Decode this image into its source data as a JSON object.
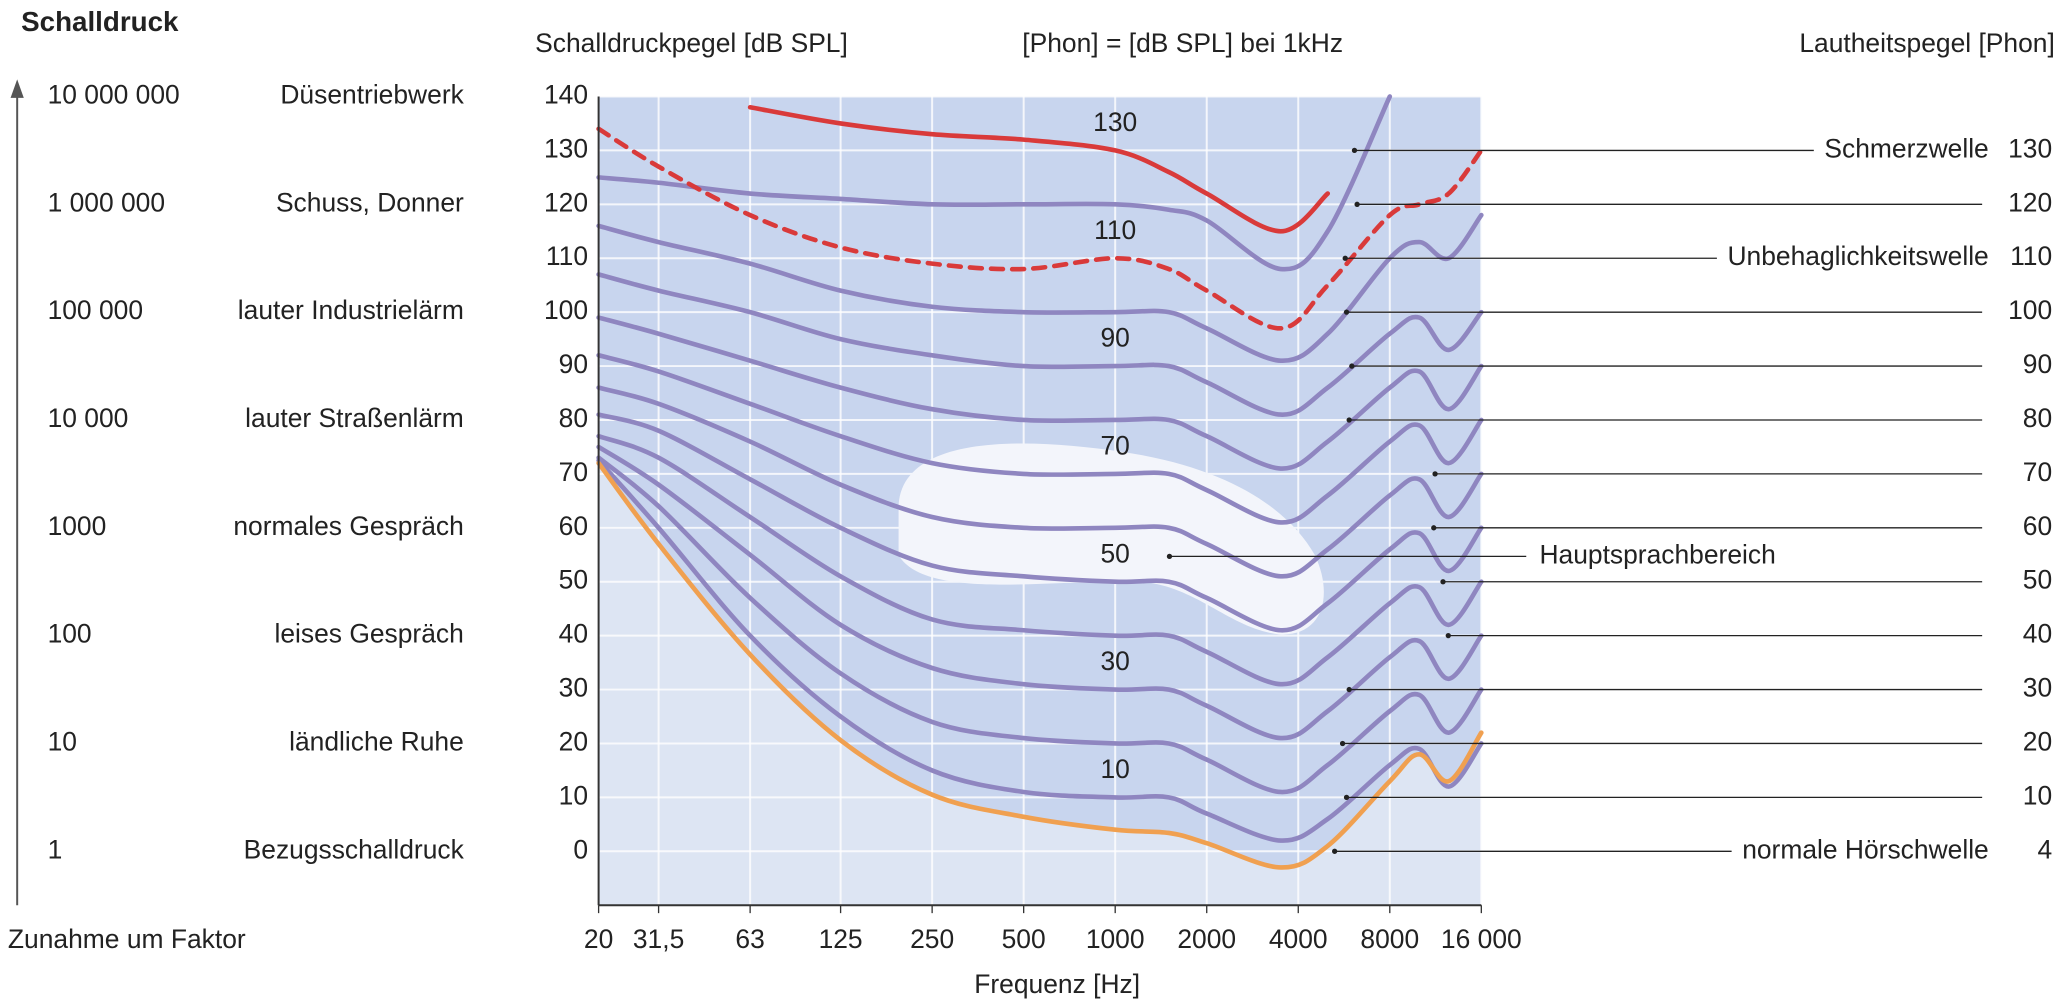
{
  "chart_data": {
    "type": "line",
    "heading": "Schalldruck",
    "y_axis_label": "Schalldruckpegel [dB SPL]",
    "subtitle": "[Phon] = [dB SPL] bei 1kHz",
    "y2_axis_label": "Lautheitspegel [Phon]",
    "x_axis_label": "Frequenz [Hz]",
    "left_footer": "Zunahme um Faktor",
    "left_scale": [
      {
        "factor": "10 000 000",
        "source": "Düsentriebwerk"
      },
      {
        "factor": "1 000 000",
        "source": "Schuss, Donner"
      },
      {
        "factor": "100 000",
        "source": "lauter Industrielärm"
      },
      {
        "factor": "10 000",
        "source": "lauter Straßenlärm"
      },
      {
        "factor": "1000",
        "source": "normales Gespräch"
      },
      {
        "factor": "100",
        "source": "leises Gespräch"
      },
      {
        "factor": "10",
        "source": "ländliche Ruhe"
      },
      {
        "factor": "1",
        "source": "Bezugsschalldruck"
      }
    ],
    "x": [
      20,
      31.5,
      63,
      125,
      250,
      500,
      1000,
      1500,
      2000,
      3500,
      5000,
      8000,
      10000,
      12500,
      16000
    ],
    "xlim": [
      20,
      16000
    ],
    "log_x": true,
    "xticks": [
      20,
      {
        "value": 31.5,
        "label": "31,5"
      },
      63,
      125,
      250,
      500,
      1000,
      2000,
      4000,
      8000,
      {
        "value": 16000,
        "label": "16 000"
      }
    ],
    "ylim": [
      -10,
      140
    ],
    "yticks": [
      0,
      10,
      20,
      30,
      40,
      50,
      60,
      70,
      80,
      90,
      100,
      110,
      120,
      130,
      140
    ],
    "grid": true,
    "series": [
      {
        "color": "#d93a3a",
        "style": "solid",
        "values": [
          null,
          null,
          138,
          135,
          133,
          132,
          130,
          126,
          122,
          115,
          122,
          null,
          null,
          null,
          null
        ]
      },
      {
        "color": "#8f86c0",
        "style": "solid",
        "values": [
          125,
          124,
          122,
          121,
          120,
          120,
          120,
          119,
          117,
          108,
          115,
          140,
          null,
          null,
          null
        ]
      },
      {
        "color": "#d93a3a",
        "style": "dashed",
        "values": [
          134,
          127,
          118,
          112,
          109,
          108,
          110,
          108,
          104,
          97,
          105,
          118,
          120,
          122,
          130
        ]
      },
      {
        "color": "#8f86c0",
        "style": "solid",
        "values": [
          116,
          113,
          109,
          104,
          101,
          100,
          100,
          100,
          97,
          91,
          96,
          110,
          113,
          110,
          118
        ]
      },
      {
        "color": "#8f86c0",
        "style": "solid",
        "values": [
          107,
          104,
          100,
          95,
          92,
          90,
          90,
          90,
          87,
          81,
          86,
          96,
          99,
          93,
          100
        ]
      },
      {
        "color": "#8f86c0",
        "style": "solid",
        "values": [
          99,
          96,
          91,
          86,
          82,
          80,
          80,
          80,
          77,
          71,
          76,
          86,
          89,
          82,
          90
        ]
      },
      {
        "color": "#8f86c0",
        "style": "solid",
        "values": [
          92,
          89,
          83,
          77,
          72,
          70,
          70,
          70,
          67,
          61,
          66,
          76,
          79,
          72,
          80
        ]
      },
      {
        "color": "#8f86c0",
        "style": "solid",
        "values": [
          86,
          83,
          76,
          68,
          62,
          60,
          60,
          60,
          57,
          51,
          56,
          66,
          69,
          62,
          70
        ]
      },
      {
        "color": "#8f86c0",
        "style": "solid",
        "values": [
          81,
          78,
          69,
          60,
          53,
          51,
          50,
          50,
          47,
          41,
          46,
          56,
          59,
          52,
          60
        ]
      },
      {
        "color": "#8f86c0",
        "style": "solid",
        "values": [
          77,
          73,
          62,
          51,
          43,
          41,
          40,
          40,
          37,
          31,
          36,
          46,
          49,
          42,
          50
        ]
      },
      {
        "color": "#8f86c0",
        "style": "solid",
        "values": [
          75,
          68,
          55,
          42,
          34,
          31,
          30,
          30,
          27,
          21,
          26,
          36,
          39,
          32,
          40
        ]
      },
      {
        "color": "#8f86c0",
        "style": "solid",
        "values": [
          73,
          64,
          47,
          33,
          24,
          21,
          20,
          20,
          17,
          11,
          16,
          26,
          29,
          22,
          30
        ]
      },
      {
        "color": "#8f86c0",
        "style": "solid",
        "values": [
          72.5,
          60,
          40,
          25,
          15,
          11,
          10,
          10,
          7,
          2,
          6,
          16,
          19,
          12,
          20
        ]
      },
      {
        "color": "#f0a050",
        "style": "solid",
        "threshold": true,
        "values": [
          72,
          57,
          36.5,
          20.6,
          10.5,
          6.4,
          4,
          3.4,
          1.5,
          -3,
          1,
          13,
          18,
          13,
          22
        ]
      }
    ],
    "curve_labels": [
      130,
      110,
      90,
      70,
      50,
      30,
      10
    ],
    "speech_area_label": "Hauptsprachbereich",
    "right_labels": [
      {
        "label": "Schmerzwelle",
        "value": 130
      },
      {
        "value": 120
      },
      {
        "label": "Unbehaglichkeitswelle",
        "value": 110
      },
      {
        "value": 100
      },
      {
        "value": 90
      },
      {
        "value": 80
      },
      {
        "value": 70
      },
      {
        "value": 60
      },
      {
        "value": 50
      },
      {
        "value": 40
      },
      {
        "value": 30
      },
      {
        "value": 20
      },
      {
        "value": 10
      },
      {
        "label": "normale Hörschwelle",
        "value": 4
      }
    ]
  }
}
